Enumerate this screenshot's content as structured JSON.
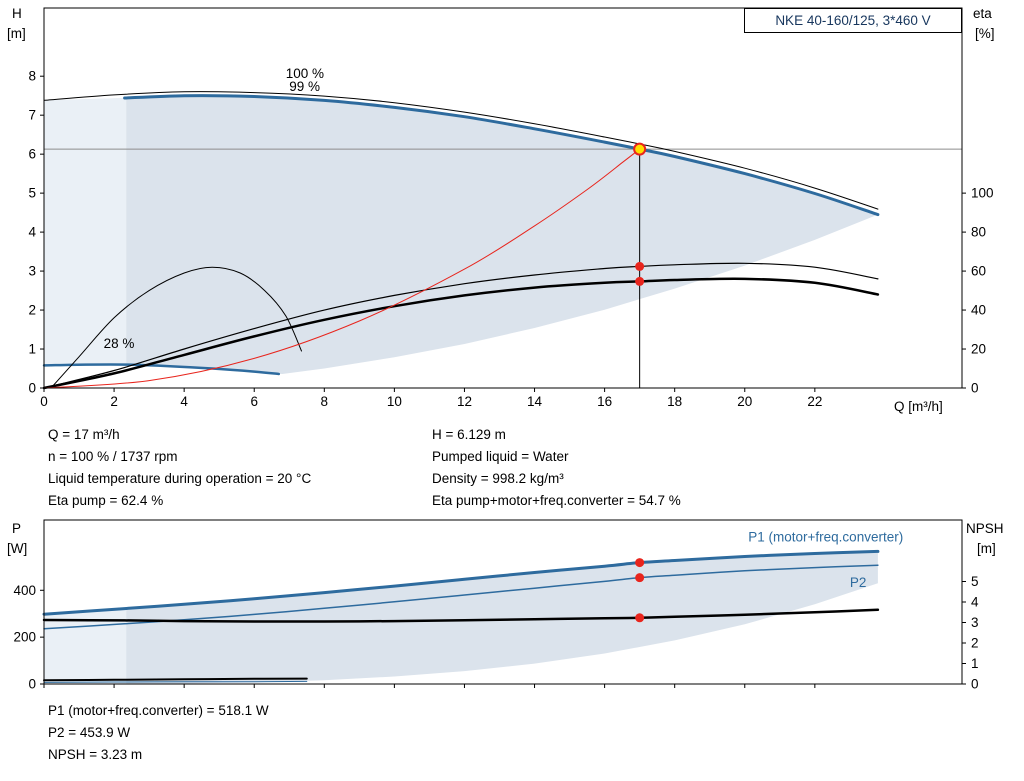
{
  "title_box": {
    "text": "NKE 40-160/125, 3*460 V"
  },
  "colors": {
    "curve_blue": "#2e6b9e",
    "label_blue": "#2e6b9e",
    "red": "#e8251d",
    "yellow": "#ffdf00",
    "black": "#000000",
    "gray_line": "#8c8c8c",
    "envelope": "#dbe3ec",
    "envelope_light": "#eaf0f6",
    "title_text": "#17365d"
  },
  "operating_text": {
    "left": [
      "Q = 17 m³/h",
      "n = 100 % / 1737 rpm",
      "Liquid temperature during operation = 20 °C",
      "Eta pump = 62.4 %"
    ],
    "right": [
      "H = 6.129 m",
      "Pumped liquid = Water",
      "Density = 998.2 kg/m³",
      "Eta pump+motor+freq.converter = 54.7 %"
    ]
  },
  "result_text": [
    "P1 (motor+freq.converter) = 518.1 W",
    "P2 = 453.9 W",
    "NPSH = 3.23 m"
  ],
  "chart_data": [
    {
      "type": "line",
      "title": "NKE 40-160/125, 3*460 V",
      "x_axis": {
        "label": "Q [m³/h]",
        "min": 0,
        "max": 26.2,
        "ticks": [
          0,
          2,
          4,
          6,
          8,
          10,
          12,
          14,
          16,
          18,
          20,
          22
        ]
      },
      "y_axis_left": {
        "label": [
          "H",
          "[m]"
        ],
        "min": 0,
        "max": 9.75,
        "ticks": [
          0,
          1,
          2,
          3,
          4,
          5,
          6,
          7,
          8
        ]
      },
      "y_axis_right": {
        "label": [
          "eta",
          "[%]"
        ],
        "min": 0,
        "max": 195,
        "ticks": [
          0,
          20,
          40,
          60,
          80,
          100
        ]
      },
      "series": [
        {
          "name": "head-100pct-nominal",
          "axis": "left",
          "color": "black",
          "width": 1,
          "points": [
            [
              0,
              7.38
            ],
            [
              2,
              7.52
            ],
            [
              4,
              7.6
            ],
            [
              6,
              7.58
            ],
            [
              8,
              7.49
            ],
            [
              10,
              7.32
            ],
            [
              12,
              7.08
            ],
            [
              14,
              6.78
            ],
            [
              16,
              6.44
            ],
            [
              17,
              6.26
            ],
            [
              18,
              6.07
            ],
            [
              20,
              5.64
            ],
            [
              22,
              5.13
            ],
            [
              23.8,
              4.59
            ]
          ]
        },
        {
          "name": "head-100pct",
          "axis": "left",
          "color": "blue",
          "width": 3,
          "points": [
            [
              2.3,
              7.44
            ],
            [
              4,
              7.5
            ],
            [
              6,
              7.48
            ],
            [
              8,
              7.38
            ],
            [
              10,
              7.2
            ],
            [
              12,
              6.96
            ],
            [
              14,
              6.65
            ],
            [
              16,
              6.31
            ],
            [
              17,
              6.129
            ],
            [
              18,
              5.94
            ],
            [
              20,
              5.5
            ],
            [
              22,
              4.99
            ],
            [
              23.8,
              4.45
            ]
          ]
        },
        {
          "name": "head-28pct",
          "axis": "left",
          "color": "blue",
          "width": 2.5,
          "points": [
            [
              0,
              0.58
            ],
            [
              1.2,
              0.6
            ],
            [
              2.4,
              0.6
            ],
            [
              3.6,
              0.56
            ],
            [
              4.8,
              0.5
            ],
            [
              6,
              0.42
            ],
            [
              6.7,
              0.36
            ]
          ]
        },
        {
          "name": "eta-28pct",
          "axis": "right",
          "color": "black",
          "width": 1,
          "points": [
            [
              0.2,
              0
            ],
            [
              1,
              16
            ],
            [
              2,
              36
            ],
            [
              3,
              50
            ],
            [
              4,
              59
            ],
            [
              4.8,
              62
            ],
            [
              5.6,
              59
            ],
            [
              6.3,
              50
            ],
            [
              6.9,
              37
            ],
            [
              7.35,
              19
            ]
          ]
        },
        {
          "name": "eta-pump",
          "axis": "right",
          "color": "black",
          "width": 1.2,
          "points": [
            [
              0,
              0
            ],
            [
              2,
              9
            ],
            [
              4,
              20
            ],
            [
              6,
              30.5
            ],
            [
              8,
              40
            ],
            [
              10,
              47.5
            ],
            [
              12,
              53.5
            ],
            [
              14,
              58
            ],
            [
              16,
              61.3
            ],
            [
              17,
              62.4
            ],
            [
              18,
              63.2
            ],
            [
              20,
              64
            ],
            [
              22,
              62
            ],
            [
              23.8,
              56
            ]
          ]
        },
        {
          "name": "eta-pump-motor-freq",
          "axis": "right",
          "color": "black",
          "width": 2.5,
          "points": [
            [
              0,
              0
            ],
            [
              2,
              7.5
            ],
            [
              4,
              17
            ],
            [
              6,
              26.5
            ],
            [
              8,
              35
            ],
            [
              10,
              42
            ],
            [
              12,
              47.5
            ],
            [
              14,
              51.5
            ],
            [
              16,
              54
            ],
            [
              17,
              54.7
            ],
            [
              18,
              55.4
            ],
            [
              20,
              56
            ],
            [
              22,
              54
            ],
            [
              23.8,
              48
            ]
          ]
        },
        {
          "name": "duty-parabola",
          "axis": "left",
          "color": "red",
          "width": 1,
          "points": [
            [
              0,
              0
            ],
            [
              3,
              0.19
            ],
            [
              6,
              0.76
            ],
            [
              9,
              1.72
            ],
            [
              12,
              3.05
            ],
            [
              14,
              4.16
            ],
            [
              15.5,
              5.09
            ],
            [
              16.5,
              5.78
            ],
            [
              17,
              6.129
            ]
          ]
        }
      ],
      "envelope": {
        "main": [
          [
            0,
            7.38
          ],
          [
            2.3,
            7.44
          ],
          [
            4,
            7.51
          ],
          [
            6,
            7.49
          ],
          [
            8,
            7.39
          ],
          [
            10,
            7.21
          ],
          [
            12,
            6.97
          ],
          [
            14,
            6.66
          ],
          [
            16,
            6.32
          ],
          [
            17,
            6.13
          ],
          [
            18,
            5.94
          ],
          [
            20,
            5.5
          ],
          [
            22,
            4.99
          ],
          [
            23.8,
            4.45
          ],
          [
            22,
            3.8
          ],
          [
            20,
            3.14
          ],
          [
            18,
            2.55
          ],
          [
            16,
            2.01
          ],
          [
            14,
            1.54
          ],
          [
            12,
            1.13
          ],
          [
            10,
            0.79
          ],
          [
            8,
            0.5
          ],
          [
            6.8,
            0.36
          ],
          [
            6,
            0.42
          ],
          [
            4.8,
            0.5
          ],
          [
            3.6,
            0.56
          ],
          [
            2.4,
            0.6
          ],
          [
            1.2,
            0.6
          ],
          [
            0,
            0.58
          ]
        ],
        "light": [
          [
            0,
            7.38
          ],
          [
            2.35,
            7.44
          ],
          [
            2.35,
            0.6
          ],
          [
            1.2,
            0.6
          ],
          [
            0,
            0.58
          ]
        ]
      },
      "duty_lines": {
        "horizontal": {
          "v": 6.129
        },
        "vertical": {
          "q": 17,
          "v0": 0,
          "v1": 6.129
        }
      },
      "markers": [
        {
          "q": 17,
          "v": 6.129,
          "axis": "left",
          "style": "duty"
        },
        {
          "q": 17,
          "v": 62.4,
          "axis": "right",
          "style": "red"
        },
        {
          "q": 17,
          "v": 54.7,
          "axis": "right",
          "style": "red"
        }
      ],
      "annotations": [
        {
          "text": "100 %",
          "q": 6.9,
          "v": 7.95,
          "axis": "left",
          "color": "black"
        },
        {
          "text": "99 %",
          "q": 7.0,
          "v": 7.62,
          "axis": "left",
          "color": "black"
        },
        {
          "text": "28 %",
          "q": 1.7,
          "v": 1.03,
          "axis": "left",
          "color": "black"
        }
      ]
    },
    {
      "type": "line",
      "x_axis": {
        "label": "",
        "min": 0,
        "max": 26.2,
        "ticks": [
          0,
          2,
          4,
          6,
          8,
          10,
          12,
          14,
          16,
          18,
          20,
          22
        ]
      },
      "y_axis_left": {
        "label": [
          "P",
          "[W]"
        ],
        "min": 0,
        "max": 700,
        "ticks": [
          0,
          200,
          400
        ]
      },
      "y_axis_right": {
        "label": [
          "NPSH",
          "[m]"
        ],
        "min": 0,
        "max": 8,
        "ticks": [
          0,
          1,
          2,
          3,
          4,
          5
        ]
      },
      "series": [
        {
          "name": "p1-motor-freq-converter",
          "axis": "left",
          "color": "blue",
          "width": 3,
          "points": [
            [
              0,
              298
            ],
            [
              2.3,
              322
            ],
            [
              4,
              340
            ],
            [
              6,
              364
            ],
            [
              8,
              390
            ],
            [
              10,
              418
            ],
            [
              12,
              447
            ],
            [
              14,
              476
            ],
            [
              16,
              503
            ],
            [
              17,
              518.1
            ],
            [
              18,
              527
            ],
            [
              20,
              544
            ],
            [
              22,
              557
            ],
            [
              23.8,
              566
            ]
          ]
        },
        {
          "name": "p2",
          "axis": "left",
          "color": "blue",
          "width": 1.5,
          "points": [
            [
              0,
              236
            ],
            [
              2.3,
              257
            ],
            [
              4,
              274
            ],
            [
              6,
              297
            ],
            [
              8,
              323
            ],
            [
              10,
              351
            ],
            [
              12,
              380
            ],
            [
              14,
              409
            ],
            [
              16,
              438
            ],
            [
              17,
              453.9
            ],
            [
              18,
              464
            ],
            [
              20,
              483
            ],
            [
              22,
              497
            ],
            [
              23.8,
              507
            ]
          ]
        },
        {
          "name": "npsh",
          "axis": "right",
          "color": "black",
          "width": 2.5,
          "points": [
            [
              0,
              3.12
            ],
            [
              2.3,
              3.1
            ],
            [
              4,
              3.07
            ],
            [
              6,
              3.05
            ],
            [
              8,
              3.05
            ],
            [
              10,
              3.07
            ],
            [
              12,
              3.11
            ],
            [
              14,
              3.16
            ],
            [
              16,
              3.21
            ],
            [
              17,
              3.23
            ],
            [
              18,
              3.28
            ],
            [
              20,
              3.38
            ],
            [
              22,
              3.5
            ],
            [
              23.8,
              3.62
            ]
          ]
        },
        {
          "name": "p-28pct",
          "axis": "left",
          "color": "black",
          "width": 2,
          "points": [
            [
              0,
              16
            ],
            [
              2,
              18
            ],
            [
              4,
              20
            ],
            [
              6,
              22
            ],
            [
              7.5,
              23
            ]
          ]
        },
        {
          "name": "p2-28pct",
          "axis": "left",
          "color": "blue",
          "width": 1,
          "points": [
            [
              0,
              7
            ],
            [
              3,
              9
            ],
            [
              6,
              10
            ],
            [
              7.5,
              11
            ]
          ]
        }
      ],
      "envelope": {
        "main": [
          [
            0,
            298
          ],
          [
            2.3,
            322
          ],
          [
            4,
            340
          ],
          [
            6,
            364
          ],
          [
            8,
            390
          ],
          [
            10,
            418
          ],
          [
            12,
            447
          ],
          [
            14,
            476
          ],
          [
            16,
            503
          ],
          [
            18,
            527
          ],
          [
            20,
            544
          ],
          [
            22,
            557
          ],
          [
            23.8,
            566
          ],
          [
            23.8,
            430
          ],
          [
            22,
            340
          ],
          [
            20,
            255
          ],
          [
            18,
            186
          ],
          [
            16,
            130
          ],
          [
            14,
            87
          ],
          [
            12,
            55
          ],
          [
            10,
            32
          ],
          [
            8,
            16
          ],
          [
            6,
            7
          ],
          [
            4,
            2
          ],
          [
            2,
            0
          ],
          [
            0,
            0
          ]
        ],
        "light": [
          [
            0,
            298
          ],
          [
            2.35,
            323
          ],
          [
            2.35,
            0
          ],
          [
            0,
            0
          ]
        ]
      },
      "markers": [
        {
          "q": 17,
          "v": 518.1,
          "axis": "left",
          "style": "red"
        },
        {
          "q": 17,
          "v": 453.9,
          "axis": "left",
          "style": "red"
        },
        {
          "q": 17,
          "v": 3.23,
          "axis": "right",
          "style": "red"
        }
      ],
      "annotations": [
        {
          "text": "P1 (motor+freq.converter)",
          "q": 20.1,
          "v": 608,
          "axis": "left",
          "color": "blue"
        },
        {
          "text": "P2",
          "q": 23.0,
          "v": 415,
          "axis": "left",
          "color": "blue"
        }
      ]
    }
  ]
}
